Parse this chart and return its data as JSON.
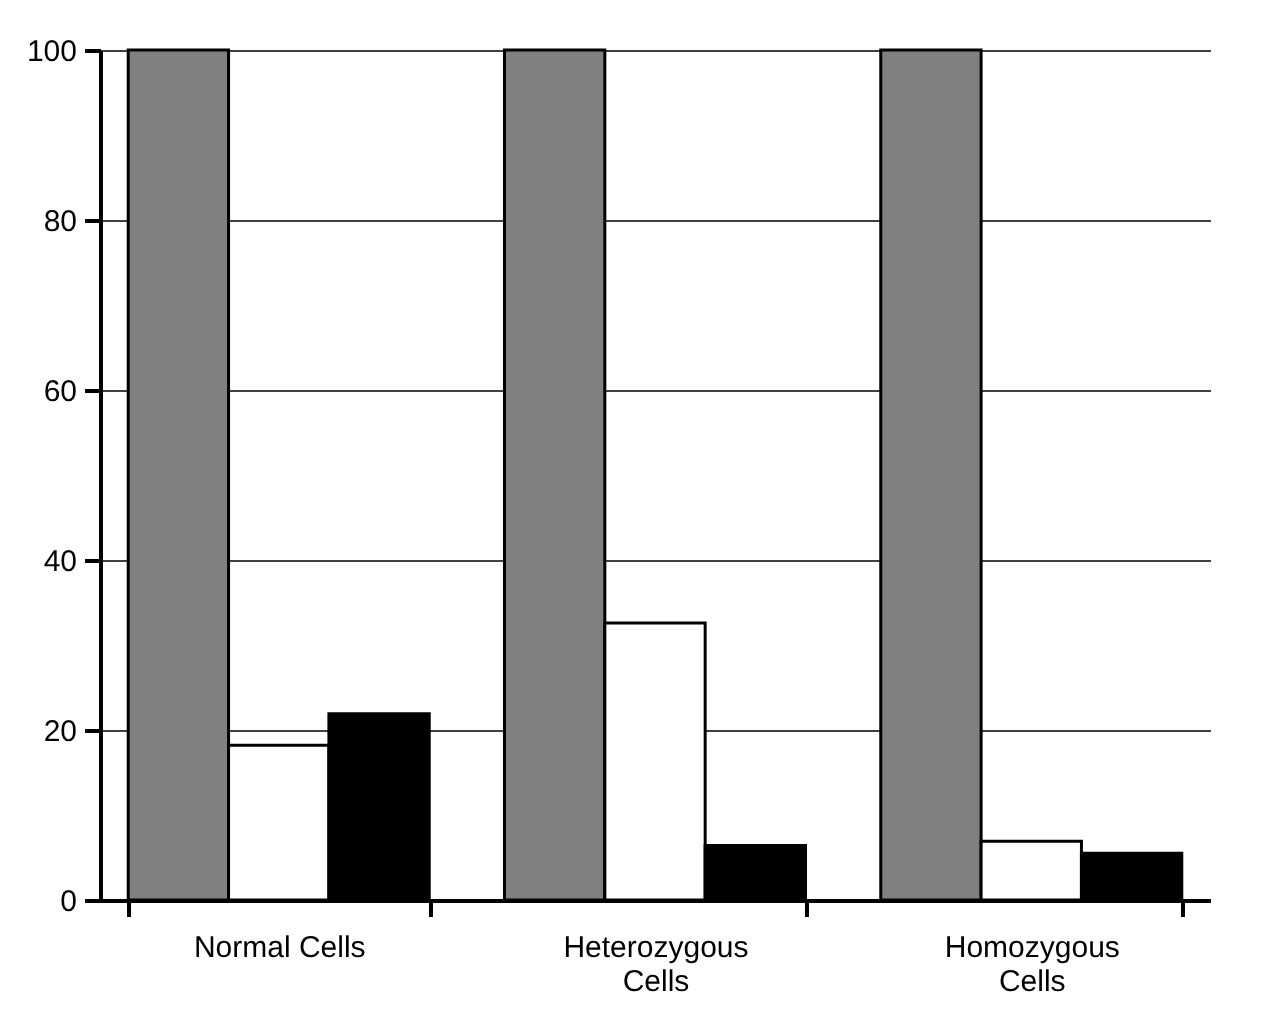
{
  "chart_data": {
    "type": "bar",
    "categories": [
      "Normal Cells",
      "Heterozygous Cells",
      "Homozygous Cells"
    ],
    "series": [
      {
        "color": "#808080",
        "values": [
          100,
          100,
          100
        ]
      },
      {
        "color": "#ffffff",
        "values": [
          18.2,
          32.6,
          6.9
        ]
      },
      {
        "color": "#000000",
        "values": [
          21.9,
          6.4,
          5.5
        ]
      }
    ],
    "ylim": [
      0,
      100
    ],
    "yticks": [
      0,
      20,
      40,
      60,
      80,
      100
    ],
    "grid": "y",
    "legend": false
  }
}
